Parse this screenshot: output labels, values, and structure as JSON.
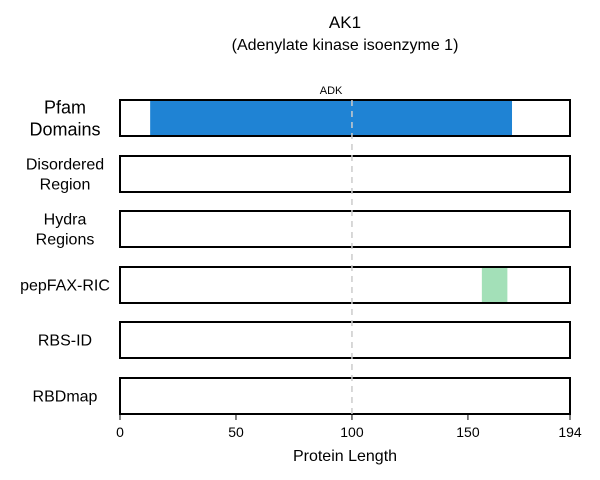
{
  "chart_data": {
    "type": "bar",
    "title": "AK1",
    "subtitle": "(Adenylate kinase isoenzyme 1)",
    "xlabel": "Protein Length",
    "xlim": [
      0,
      194
    ],
    "xticks": [
      0,
      50,
      100,
      150,
      194
    ],
    "reference_line": 100,
    "tracks": [
      {
        "label": [
          "Pfam",
          "Domains"
        ],
        "segments": [
          {
            "start": 13,
            "end": 169,
            "color": "#1f83d4",
            "label": "ADK"
          }
        ]
      },
      {
        "label": [
          "Disordered",
          "Region"
        ],
        "segments": []
      },
      {
        "label": [
          "Hydra",
          "Regions"
        ],
        "segments": []
      },
      {
        "label": [
          "pepFAX-RIC"
        ],
        "segments": [
          {
            "start": 156,
            "end": 167,
            "color": "#a3e0b8",
            "label": ""
          }
        ]
      },
      {
        "label": [
          "RBS-ID"
        ],
        "segments": []
      },
      {
        "label": [
          "RBDmap"
        ],
        "segments": []
      }
    ]
  }
}
